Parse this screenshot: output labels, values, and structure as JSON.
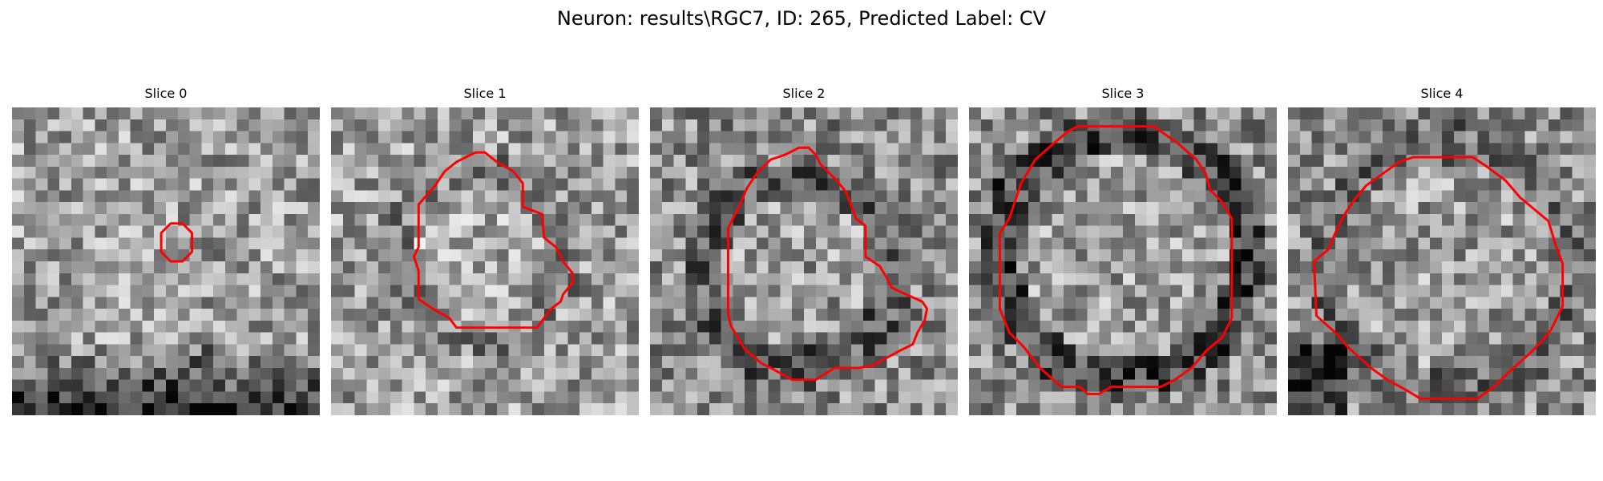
{
  "figure": {
    "suptitle": "Neuron: results\\RGC7, ID: 265, Predicted Label: CV"
  },
  "slices": [
    {
      "title": "Slice 0"
    },
    {
      "title": "Slice 1"
    },
    {
      "title": "Slice 2"
    },
    {
      "title": "Slice 3"
    },
    {
      "title": "Slice 4"
    }
  ],
  "colors": {
    "contour": "#ff0000",
    "colormap": "gray"
  }
}
